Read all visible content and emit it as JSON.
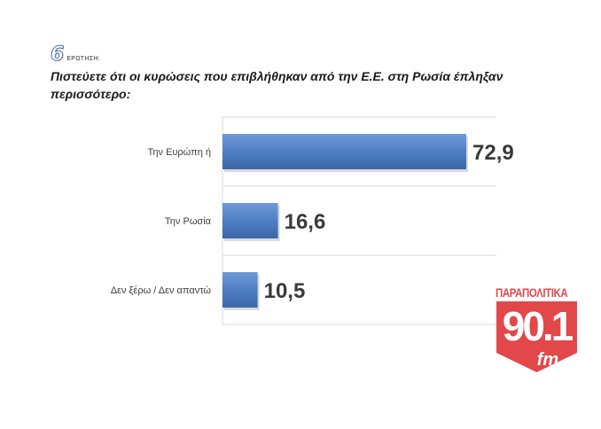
{
  "header": {
    "question_number": "6",
    "question_label": "ΕΡΩΤΗΣΗ:",
    "question_text": "Πιστεύετε ότι οι κυρώσεις που επιβλήθηκαν από την Ε.Ε. στη Ρωσία έπληξαν περισσότερο:"
  },
  "chart_data": {
    "type": "bar",
    "orientation": "horizontal",
    "categories": [
      "Την Ευρώπη ή",
      "Την Ρωσία",
      "Δεν ξέρω / Δεν απαντώ"
    ],
    "values": [
      72.9,
      16.6,
      10.5
    ],
    "value_labels": [
      "72,9",
      "16,6",
      "10,5"
    ],
    "title": "",
    "xlabel": "",
    "ylabel": "",
    "xlim": [
      0,
      100
    ],
    "grid": true,
    "legend": "none"
  },
  "logo": {
    "brand": "ΠΑΡΑΠΟΛΙΤΙΚΑ",
    "frequency": "90.1",
    "band": "fm"
  },
  "colors": {
    "bar": "#4f7fc4",
    "bar_dark": "#3a67a8",
    "grid": "#d9d9d9",
    "logo_red": "#e2474a"
  }
}
